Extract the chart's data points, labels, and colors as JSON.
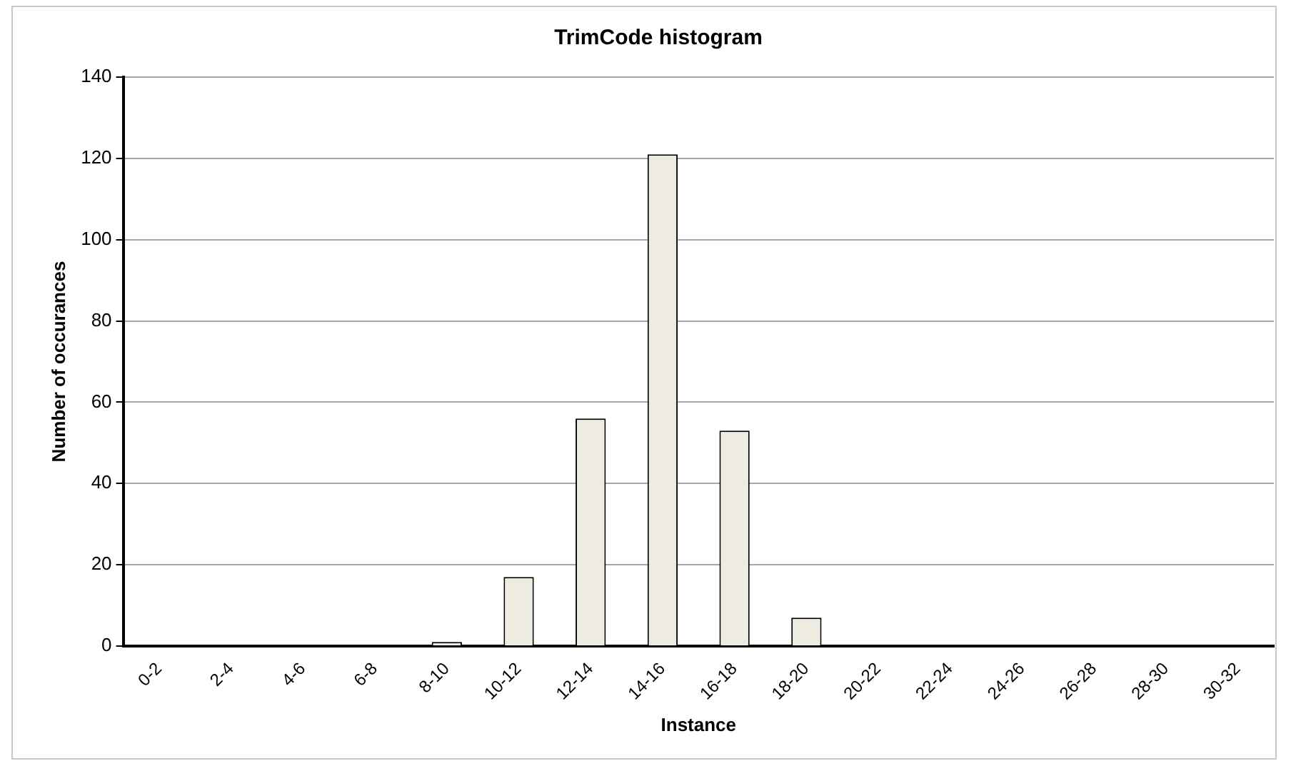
{
  "chart_data": {
    "type": "bar",
    "title": "TrimCode histogram",
    "xlabel": "Instance",
    "ylabel": "Number of occurances",
    "categories": [
      "0-2",
      "2-4",
      "4-6",
      "6-8",
      "8-10",
      "10-12",
      "12-14",
      "14-16",
      "16-18",
      "18-20",
      "20-22",
      "22-24",
      "24-26",
      "26-28",
      "28-30",
      "30-32"
    ],
    "values": [
      0,
      0,
      0,
      0,
      1,
      17,
      56,
      121,
      53,
      7,
      0,
      0,
      0,
      0,
      0,
      0
    ],
    "color": "#eeece1",
    "ylim": [
      0,
      140
    ],
    "yticks": [
      0,
      20,
      40,
      60,
      80,
      100,
      120,
      140
    ],
    "grid": "y",
    "legend": false
  }
}
